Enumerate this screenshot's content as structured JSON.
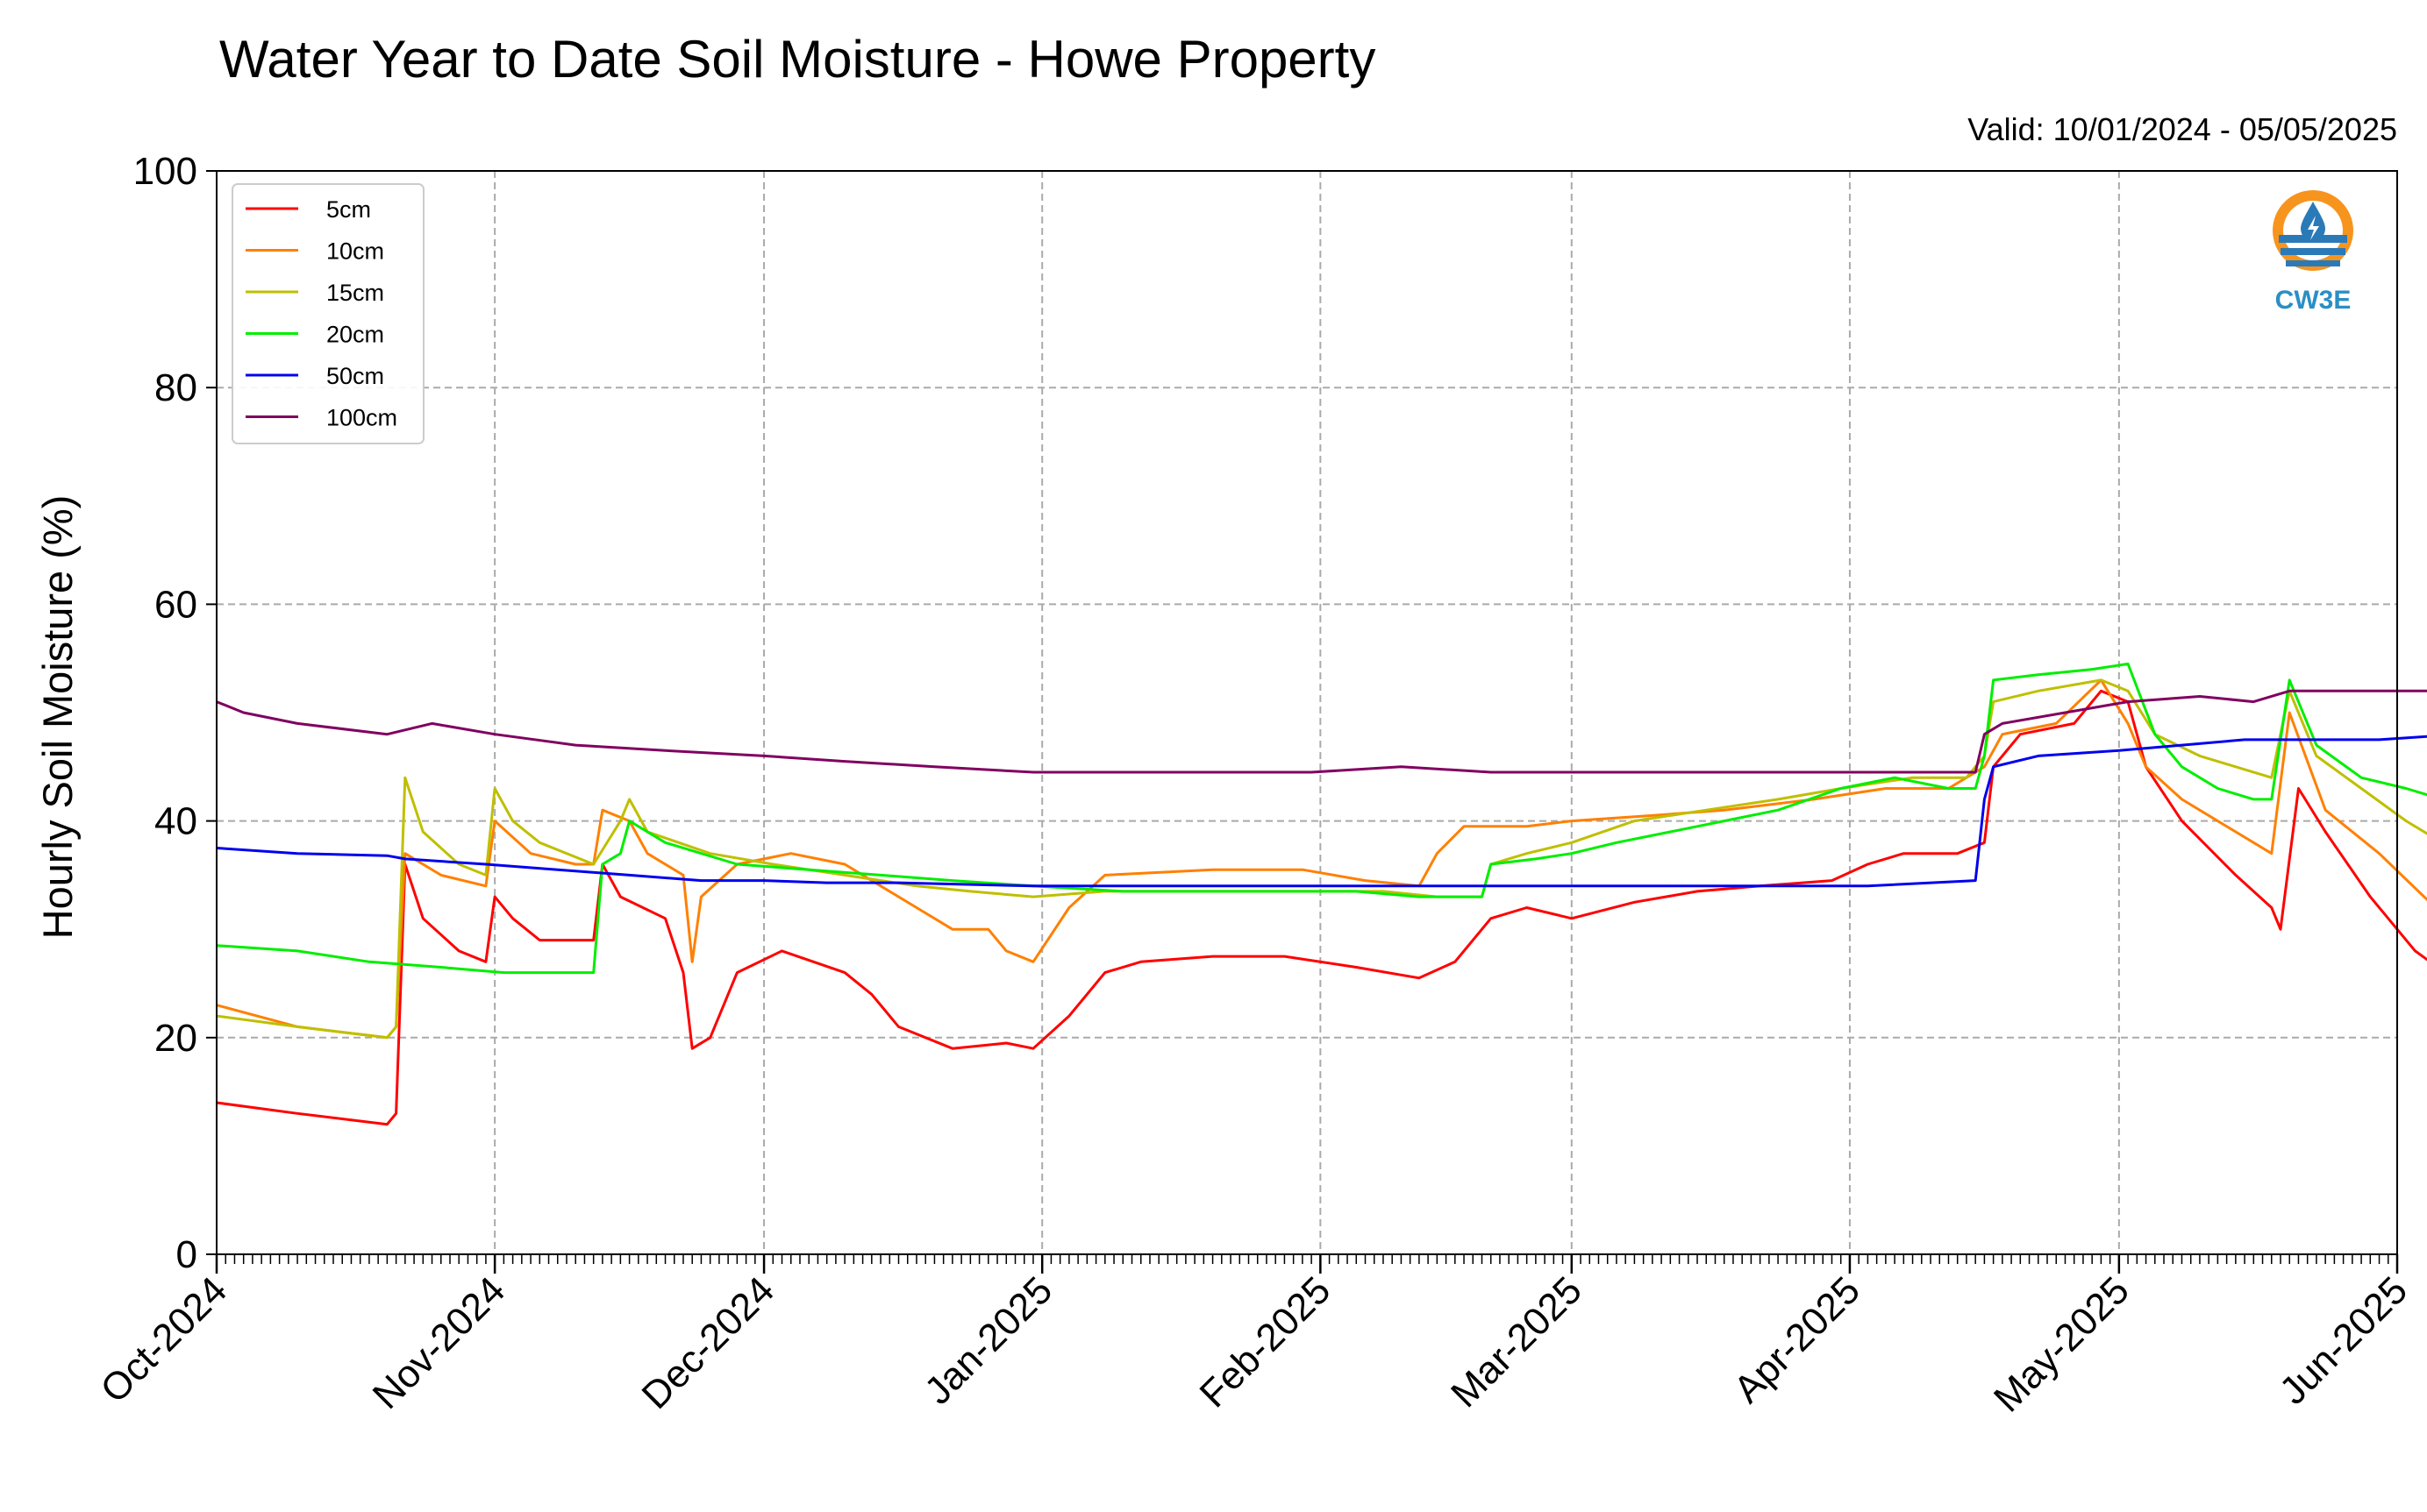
{
  "chart_data": {
    "type": "line",
    "title": "Water Year to Date Soil Moisture - Howe Property",
    "subtitle": "Valid: 10/01/2024 - 05/05/2025",
    "xlabel": "",
    "ylabel": "Hourly Soil Moisture (%)",
    "ylim": [
      0,
      100
    ],
    "xlim": [
      "2024-10-01",
      "2025-06-01"
    ],
    "y_ticks": [
      "0",
      "20",
      "40",
      "60",
      "80",
      "100"
    ],
    "x_ticks": [
      {
        "date": "2024-10-01",
        "label": "Oct-2024"
      },
      {
        "date": "2024-11-01",
        "label": "Nov-2024"
      },
      {
        "date": "2024-12-01",
        "label": "Dec-2024"
      },
      {
        "date": "2025-01-01",
        "label": "Jan-2025"
      },
      {
        "date": "2025-02-01",
        "label": "Feb-2025"
      },
      {
        "date": "2025-03-01",
        "label": "Mar-2025"
      },
      {
        "date": "2025-04-01",
        "label": "Apr-2025"
      },
      {
        "date": "2025-05-01",
        "label": "May-2025"
      },
      {
        "date": "2025-06-01",
        "label": "Jun-2025"
      }
    ],
    "grid": true,
    "legend_position": "top-left",
    "series": [
      {
        "name": "5cm",
        "color": "#ff0000",
        "points": [
          [
            "2024-10-01",
            14
          ],
          [
            "2024-10-10",
            13
          ],
          [
            "2024-10-20",
            12
          ],
          [
            "2024-10-21",
            13
          ],
          [
            "2024-10-22",
            36
          ],
          [
            "2024-10-24",
            31
          ],
          [
            "2024-10-28",
            28
          ],
          [
            "2024-10-31",
            27
          ],
          [
            "2024-11-01",
            33
          ],
          [
            "2024-11-03",
            31
          ],
          [
            "2024-11-06",
            29
          ],
          [
            "2024-11-12",
            29
          ],
          [
            "2024-11-13",
            36
          ],
          [
            "2024-11-15",
            33
          ],
          [
            "2024-11-20",
            31
          ],
          [
            "2024-11-22",
            26
          ],
          [
            "2024-11-23",
            19
          ],
          [
            "2024-11-25",
            20
          ],
          [
            "2024-11-28",
            26
          ],
          [
            "2024-12-03",
            28
          ],
          [
            "2024-12-10",
            26
          ],
          [
            "2024-12-13",
            24
          ],
          [
            "2024-12-16",
            21
          ],
          [
            "2024-12-22",
            19
          ],
          [
            "2024-12-28",
            19.5
          ],
          [
            "2024-12-31",
            19
          ],
          [
            "2025-01-04",
            22
          ],
          [
            "2025-01-08",
            26
          ],
          [
            "2025-01-12",
            27
          ],
          [
            "2025-01-20",
            27.5
          ],
          [
            "2025-01-28",
            27.5
          ],
          [
            "2025-02-05",
            26.5
          ],
          [
            "2025-02-12",
            25.5
          ],
          [
            "2025-02-16",
            27
          ],
          [
            "2025-02-20",
            31
          ],
          [
            "2025-02-24",
            32
          ],
          [
            "2025-03-01",
            31
          ],
          [
            "2025-03-08",
            32.5
          ],
          [
            "2025-03-15",
            33.5
          ],
          [
            "2025-03-22",
            34
          ],
          [
            "2025-03-30",
            34.5
          ],
          [
            "2025-04-03",
            36
          ],
          [
            "2025-04-07",
            37
          ],
          [
            "2025-04-13",
            37
          ],
          [
            "2025-04-16",
            38
          ],
          [
            "2025-04-17",
            45
          ],
          [
            "2025-04-20",
            48
          ],
          [
            "2025-04-26",
            49
          ],
          [
            "2025-04-29",
            52
          ],
          [
            "2025-05-02",
            51
          ],
          [
            "2025-05-04",
            45
          ],
          [
            "2025-05-08",
            40
          ],
          [
            "2025-05-14",
            35
          ],
          [
            "2025-05-18",
            32
          ],
          [
            "2025-05-19",
            30
          ],
          [
            "2025-05-21",
            43
          ],
          [
            "2025-05-24",
            39
          ],
          [
            "2025-05-29",
            33
          ],
          [
            "2025-06-03",
            28
          ],
          [
            "2025-06-08",
            25
          ]
        ]
      },
      {
        "name": "10cm",
        "color": "#ff8000",
        "points": [
          [
            "2024-10-01",
            23
          ],
          [
            "2024-10-10",
            21
          ],
          [
            "2024-10-20",
            20
          ],
          [
            "2024-10-21",
            21
          ],
          [
            "2024-10-22",
            37
          ],
          [
            "2024-10-26",
            35
          ],
          [
            "2024-10-31",
            34
          ],
          [
            "2024-11-01",
            40
          ],
          [
            "2024-11-05",
            37
          ],
          [
            "2024-11-10",
            36
          ],
          [
            "2024-11-12",
            36
          ],
          [
            "2024-11-13",
            41
          ],
          [
            "2024-11-16",
            40
          ],
          [
            "2024-11-18",
            37
          ],
          [
            "2024-11-22",
            35
          ],
          [
            "2024-11-23",
            27
          ],
          [
            "2024-11-24",
            33
          ],
          [
            "2024-11-28",
            36
          ],
          [
            "2024-12-04",
            37
          ],
          [
            "2024-12-10",
            36
          ],
          [
            "2024-12-14",
            34
          ],
          [
            "2024-12-18",
            32
          ],
          [
            "2024-12-22",
            30
          ],
          [
            "2024-12-26",
            30
          ],
          [
            "2024-12-28",
            28
          ],
          [
            "2024-12-31",
            27
          ],
          [
            "2025-01-04",
            32
          ],
          [
            "2025-01-08",
            35
          ],
          [
            "2025-01-20",
            35.5
          ],
          [
            "2025-01-30",
            35.5
          ],
          [
            "2025-02-06",
            34.5
          ],
          [
            "2025-02-12",
            34
          ],
          [
            "2025-02-14",
            37
          ],
          [
            "2025-02-17",
            39.5
          ],
          [
            "2025-02-24",
            39.5
          ],
          [
            "2025-03-01",
            40
          ],
          [
            "2025-03-10",
            40.5
          ],
          [
            "2025-03-18",
            41
          ],
          [
            "2025-03-28",
            42
          ],
          [
            "2025-04-05",
            43
          ],
          [
            "2025-04-12",
            43
          ],
          [
            "2025-04-16",
            45
          ],
          [
            "2025-04-18",
            48
          ],
          [
            "2025-04-24",
            49
          ],
          [
            "2025-04-29",
            53
          ],
          [
            "2025-05-02",
            49
          ],
          [
            "2025-05-04",
            45
          ],
          [
            "2025-05-08",
            42
          ],
          [
            "2025-05-14",
            39
          ],
          [
            "2025-05-18",
            37
          ],
          [
            "2025-05-20",
            50
          ],
          [
            "2025-05-24",
            41
          ],
          [
            "2025-05-30",
            37
          ],
          [
            "2025-06-04",
            33
          ],
          [
            "2025-06-08",
            30
          ]
        ]
      },
      {
        "name": "15cm",
        "color": "#bfbf00",
        "points": [
          [
            "2024-10-01",
            22
          ],
          [
            "2024-10-10",
            21
          ],
          [
            "2024-10-20",
            20
          ],
          [
            "2024-10-21",
            21
          ],
          [
            "2024-10-22",
            44
          ],
          [
            "2024-10-24",
            39
          ],
          [
            "2024-10-28",
            36
          ],
          [
            "2024-10-31",
            35
          ],
          [
            "2024-11-01",
            43
          ],
          [
            "2024-11-03",
            40
          ],
          [
            "2024-11-06",
            38
          ],
          [
            "2024-11-12",
            36
          ],
          [
            "2024-11-15",
            40
          ],
          [
            "2024-11-16",
            42
          ],
          [
            "2024-11-18",
            39
          ],
          [
            "2024-11-25",
            37
          ],
          [
            "2024-12-02",
            36
          ],
          [
            "2024-12-10",
            35
          ],
          [
            "2024-12-18",
            34
          ],
          [
            "2024-12-24",
            33.5
          ],
          [
            "2024-12-31",
            33
          ],
          [
            "2025-01-08",
            33.5
          ],
          [
            "2025-01-20",
            33.5
          ],
          [
            "2025-01-30",
            33.5
          ],
          [
            "2025-02-08",
            33.5
          ],
          [
            "2025-02-14",
            33
          ],
          [
            "2025-02-19",
            33
          ],
          [
            "2025-02-20",
            36
          ],
          [
            "2025-02-24",
            37
          ],
          [
            "2025-03-01",
            38
          ],
          [
            "2025-03-08",
            40
          ],
          [
            "2025-03-16",
            41
          ],
          [
            "2025-03-24",
            42
          ],
          [
            "2025-03-31",
            43
          ],
          [
            "2025-04-08",
            44
          ],
          [
            "2025-04-14",
            44
          ],
          [
            "2025-04-16",
            46
          ],
          [
            "2025-04-17",
            51
          ],
          [
            "2025-04-22",
            52
          ],
          [
            "2025-04-29",
            53
          ],
          [
            "2025-05-02",
            52
          ],
          [
            "2025-05-05",
            48
          ],
          [
            "2025-05-10",
            46
          ],
          [
            "2025-05-14",
            45
          ],
          [
            "2025-05-18",
            44
          ],
          [
            "2025-05-20",
            52
          ],
          [
            "2025-05-23",
            46
          ],
          [
            "2025-05-28",
            43
          ],
          [
            "2025-06-02",
            40
          ],
          [
            "2025-06-08",
            37
          ]
        ]
      },
      {
        "name": "20cm",
        "color": "#00ee00",
        "points": [
          [
            "2024-10-01",
            28.5
          ],
          [
            "2024-10-10",
            28
          ],
          [
            "2024-10-18",
            27
          ],
          [
            "2024-10-26",
            26.5
          ],
          [
            "2024-11-02",
            26
          ],
          [
            "2024-11-08",
            26
          ],
          [
            "2024-11-12",
            26
          ],
          [
            "2024-11-13",
            36
          ],
          [
            "2024-11-15",
            37
          ],
          [
            "2024-11-16",
            40
          ],
          [
            "2024-11-20",
            38
          ],
          [
            "2024-11-28",
            36
          ],
          [
            "2024-12-06",
            35.5
          ],
          [
            "2024-12-14",
            35
          ],
          [
            "2024-12-22",
            34.5
          ],
          [
            "2024-12-31",
            34
          ],
          [
            "2025-01-10",
            33.5
          ],
          [
            "2025-01-25",
            33.5
          ],
          [
            "2025-02-05",
            33.5
          ],
          [
            "2025-02-12",
            33
          ],
          [
            "2025-02-19",
            33
          ],
          [
            "2025-02-20",
            36
          ],
          [
            "2025-02-25",
            36.5
          ],
          [
            "2025-03-01",
            37
          ],
          [
            "2025-03-06",
            38
          ],
          [
            "2025-03-12",
            39
          ],
          [
            "2025-03-18",
            40
          ],
          [
            "2025-03-24",
            41
          ],
          [
            "2025-03-31",
            43
          ],
          [
            "2025-04-06",
            44
          ],
          [
            "2025-04-12",
            43
          ],
          [
            "2025-04-15",
            43
          ],
          [
            "2025-04-16",
            46
          ],
          [
            "2025-04-17",
            53
          ],
          [
            "2025-04-22",
            53.5
          ],
          [
            "2025-04-28",
            54
          ],
          [
            "2025-05-02",
            54.5
          ],
          [
            "2025-05-05",
            48
          ],
          [
            "2025-05-08",
            45
          ],
          [
            "2025-05-12",
            43
          ],
          [
            "2025-05-16",
            42
          ],
          [
            "2025-05-18",
            42
          ],
          [
            "2025-05-20",
            53
          ],
          [
            "2025-05-23",
            47
          ],
          [
            "2025-05-28",
            44
          ],
          [
            "2025-06-02",
            43
          ],
          [
            "2025-06-06",
            42
          ],
          [
            "2025-06-08",
            40
          ]
        ]
      },
      {
        "name": "50cm",
        "color": "#0000ee",
        "points": [
          [
            "2024-10-01",
            37.5
          ],
          [
            "2024-10-10",
            37
          ],
          [
            "2024-10-20",
            36.8
          ],
          [
            "2024-10-22",
            36.5
          ],
          [
            "2024-10-31",
            36
          ],
          [
            "2024-11-08",
            35.5
          ],
          [
            "2024-11-16",
            35
          ],
          [
            "2024-11-24",
            34.5
          ],
          [
            "2024-12-01",
            34.5
          ],
          [
            "2024-12-08",
            34.3
          ],
          [
            "2024-12-16",
            34.3
          ],
          [
            "2024-12-31",
            34
          ],
          [
            "2025-01-20",
            34
          ],
          [
            "2025-02-10",
            34
          ],
          [
            "2025-02-28",
            34
          ],
          [
            "2025-03-15",
            34
          ],
          [
            "2025-04-03",
            34
          ],
          [
            "2025-04-15",
            34.5
          ],
          [
            "2025-04-16",
            42
          ],
          [
            "2025-04-17",
            45
          ],
          [
            "2025-04-22",
            46
          ],
          [
            "2025-05-01",
            46.5
          ],
          [
            "2025-05-08",
            47
          ],
          [
            "2025-05-15",
            47.5
          ],
          [
            "2025-05-20",
            47.5
          ],
          [
            "2025-05-30",
            47.5
          ],
          [
            "2025-06-08",
            48
          ]
        ]
      },
      {
        "name": "100cm",
        "color": "#800060",
        "points": [
          [
            "2024-10-01",
            51
          ],
          [
            "2024-10-04",
            50
          ],
          [
            "2024-10-10",
            49
          ],
          [
            "2024-10-20",
            48
          ],
          [
            "2024-10-25",
            49
          ],
          [
            "2024-11-01",
            48
          ],
          [
            "2024-11-10",
            47
          ],
          [
            "2024-11-20",
            46.5
          ],
          [
            "2024-12-01",
            46
          ],
          [
            "2024-12-10",
            45.5
          ],
          [
            "2024-12-20",
            45
          ],
          [
            "2024-12-31",
            44.5
          ],
          [
            "2025-01-15",
            44.5
          ],
          [
            "2025-01-31",
            44.5
          ],
          [
            "2025-02-10",
            45
          ],
          [
            "2025-02-20",
            44.5
          ],
          [
            "2025-03-10",
            44.5
          ],
          [
            "2025-03-31",
            44.5
          ],
          [
            "2025-04-10",
            44.5
          ],
          [
            "2025-04-15",
            44.5
          ],
          [
            "2025-04-16",
            48
          ],
          [
            "2025-04-18",
            49
          ],
          [
            "2025-04-25",
            50
          ],
          [
            "2025-05-02",
            51
          ],
          [
            "2025-05-10",
            51.5
          ],
          [
            "2025-05-16",
            51
          ],
          [
            "2025-05-20",
            52
          ],
          [
            "2025-05-28",
            52
          ],
          [
            "2025-06-05",
            52
          ],
          [
            "2025-06-07",
            52
          ],
          [
            "2025-06-08",
            54
          ]
        ]
      }
    ]
  },
  "logo": {
    "text": "CW3E",
    "ring_color": "#f7941d",
    "wave_color": "#2a7ab8"
  }
}
